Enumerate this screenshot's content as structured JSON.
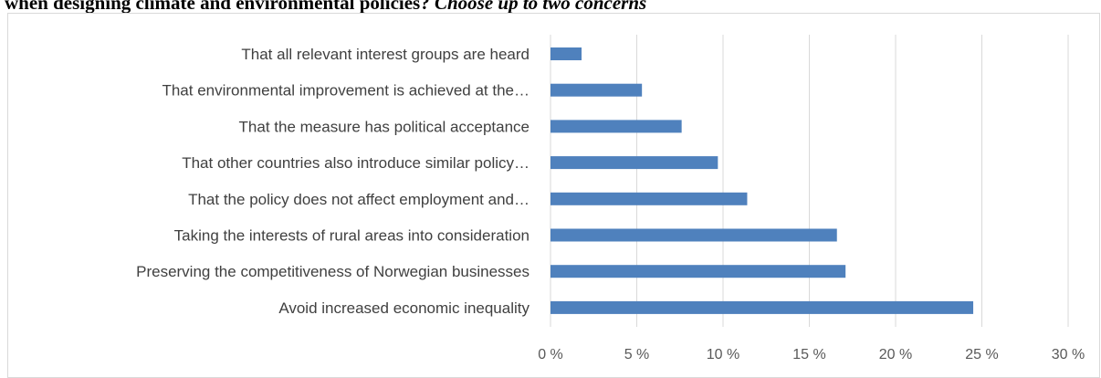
{
  "heading": {
    "text": "when designing climate and environmental policies?",
    "emphasis": "Choose up to two concerns"
  },
  "chart_data": {
    "type": "bar",
    "orientation": "horizontal",
    "categories": [
      "That all relevant interest groups are heard",
      "That environmental improvement is achieved at the…",
      "That the measure has political acceptance",
      "That other countries also introduce similar policy…",
      "That the policy does not affect employment and…",
      "Taking the interests of rural areas into consideration",
      "Preserving the competitiveness of Norwegian businesses",
      "Avoid increased economic inequality"
    ],
    "values": [
      1.8,
      5.3,
      7.6,
      9.7,
      11.4,
      16.6,
      17.1,
      24.5
    ],
    "xlim": [
      0,
      30
    ],
    "xticks": [
      0,
      5,
      10,
      15,
      20,
      25,
      30
    ],
    "xtick_labels": [
      "0 %",
      "5 %",
      "10 %",
      "15 %",
      "20 %",
      "25 %",
      "30 %"
    ],
    "grid": true,
    "bar_color": "#4f81bd",
    "grid_color": "#d9d9d9"
  }
}
